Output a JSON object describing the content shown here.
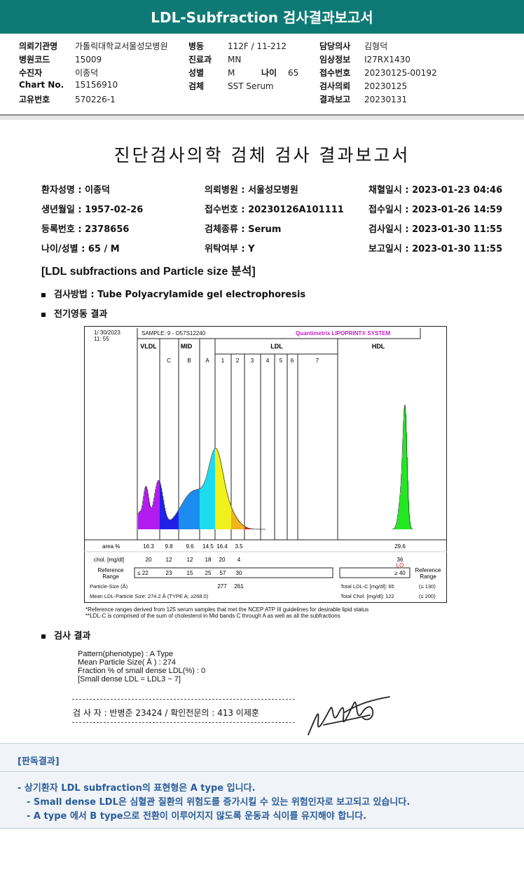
{
  "header": {
    "title": "LDL-Subfraction 검사결과보고서"
  },
  "info": {
    "col1": [
      {
        "label": "의뢰기관명",
        "value": "가톨릭대학교서울성모병원"
      },
      {
        "label": "병원코드",
        "value": "15009"
      },
      {
        "label": "수진자",
        "value": "이종덕"
      },
      {
        "label": "Chart No.",
        "value": "15156910"
      },
      {
        "label": "고유번호",
        "value": "570226-1"
      }
    ],
    "col2": [
      {
        "label": "병동",
        "value": "112F / 11-212"
      },
      {
        "label": "진료과",
        "value": "MN"
      },
      {
        "label": "성별",
        "value": "M"
      },
      {
        "label": "검체",
        "value": "SST Serum"
      }
    ],
    "age": {
      "label": "나이",
      "value": "65"
    },
    "col3": [
      {
        "label": "담당의사",
        "value": "김형덕"
      },
      {
        "label": "임상정보",
        "value": "I27RX1430"
      },
      {
        "label": "접수번호",
        "value": "20230125-00192"
      },
      {
        "label": "검사의뢰",
        "value": "20230125"
      },
      {
        "label": "결과보고",
        "value": "20230131"
      }
    ]
  },
  "report": {
    "title": "진단검사의학 검체 검사 결과보고서",
    "rows": [
      [
        "환자성명 : 이종덕",
        "의뢰병원 : 서울성모병원",
        "채혈일시 : 2023-01-23 04:46"
      ],
      [
        "생년월일 : 1957-02-26",
        "접수번호 : 20230126A101111",
        "접수일시 : 2023-01-26 14:59"
      ],
      [
        "등록번호 : 2378656",
        "검체종류 : Serum",
        "검사일시 : 2023-01-30 11:55"
      ],
      [
        "나이/성별 : 65 / M",
        "위탁여부 : Y",
        "보고일시 : 2023-01-30 11:55"
      ]
    ],
    "section": "[LDL subfractions and Particle size 분석]",
    "method": "검사방법 : Tube Polyacrylamide gel electrophoresis",
    "electro": "전기영동 결과",
    "result_heading": "검사 결과"
  },
  "chart_data": {
    "type": "area",
    "date": "1/ 30/2023",
    "time": "11: 55",
    "sample": "SAMPLE:   9 - O57S12240",
    "system": "Quantimetrix LIPOPRINT® SYSTEM",
    "groups": [
      "VLDL",
      "MID",
      "LDL",
      "HDL"
    ],
    "bands": [
      "C",
      "B",
      "A",
      "1",
      "2",
      "3",
      "4",
      "5",
      "6",
      "7"
    ],
    "rows": [
      {
        "label": "area %",
        "values": [
          "16.3",
          "9.8",
          "9.6",
          "14.5",
          "16.4",
          "3.5"
        ],
        "hdl": "29.6"
      },
      {
        "label": "chol. [mg/dl]",
        "values": [
          "20",
          "12",
          "12",
          "18",
          "20",
          "4"
        ],
        "hdl": "36"
      }
    ],
    "hdl_flag": "LO",
    "ref_label": "Reference Range",
    "ref_values": [
      "≤ 22",
      "23",
      "15",
      "25",
      "57",
      "30"
    ],
    "ref_hdl": "≥ 40",
    "particle_size_label": "Particle-Size (Å)",
    "particle_sizes": [
      "277",
      "261"
    ],
    "mean_ldl": "Mean LDL-Particle Size:   274.2 Å   (TYPE A; ≥268.0)",
    "total_ldl": "Total LDL-C [mg/dl]:  65",
    "total_ldl_ref": "(≤ 130)",
    "total_chol": "Total Chol. [mg/dl]:   122",
    "total_chol_ref": "(≤ 200)",
    "footnote1": "*Reference ranges derived from 125 serum samples that met the NCEP ATP III guidelines for desirable lipid status",
    "footnote2": "**LDL-C is comprised of the sum of cholesterol in Mid bands C through A as well as all the subfractions"
  },
  "results": [
    "Pattern(phenotype) : A Type",
    "Mean Particle Size( Å ) : 274",
    "Fraction % of small dense LDL(%) : 0",
    "[Small dense LDL = LDL3 ~ 7]"
  ],
  "signature": {
    "text": "검 사 자 : 반병준  23424  /  확인전문의 : 413  이제훈"
  },
  "conclusion": {
    "title": "[판독결과]",
    "lines": [
      "- 상기환자 LDL subfraction의 표현형은 A type 입니다.",
      "-  Small dense LDL은 심혈관 질환의 위험도를 증가시킬 수 있는 위험인자로 보고되고 있습니다.",
      "-  A type 에서 B type으로 전환이 이루어지지 않도록 운동과 식이를 유지해야 합니다."
    ]
  }
}
